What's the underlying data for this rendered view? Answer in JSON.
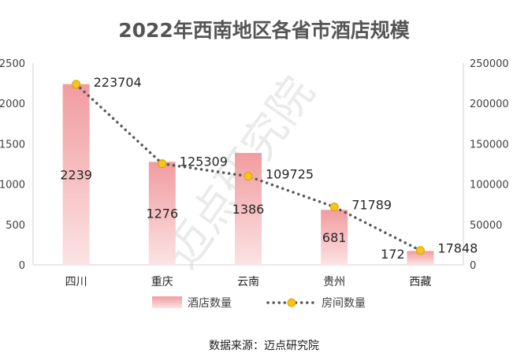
{
  "chart_data": {
    "type": "bar",
    "title": "2022年西南地区各省市酒店规模",
    "categories": [
      "四川",
      "重庆",
      "云南",
      "贵州",
      "西藏"
    ],
    "series": [
      {
        "name": "酒店数量",
        "type": "bar",
        "axis": "left",
        "values": [
          2239,
          1276,
          1386,
          681,
          172
        ]
      },
      {
        "name": "房间数量",
        "type": "line",
        "axis": "right",
        "values": [
          223704,
          125309,
          109725,
          71789,
          17848
        ]
      }
    ],
    "y_left": {
      "ylim": [
        0,
        2500
      ],
      "ticks": [
        "0",
        "500",
        "1000",
        "1500",
        "2000",
        "2500"
      ]
    },
    "y_right": {
      "ylim": [
        0,
        250000
      ],
      "ticks": [
        "0",
        "50000",
        "100000",
        "150000",
        "200000",
        "250000"
      ]
    },
    "legend_position": "bottom",
    "grid": false
  },
  "colors": {
    "bar_top": "#f19c9f",
    "bar_bottom": "#fbe3e4",
    "line": "#595959",
    "marker_fill": "#f5c518",
    "marker_stroke": "#d9a400"
  },
  "watermark": "迈点研究院",
  "source_text": "数据来源：迈点研究院"
}
